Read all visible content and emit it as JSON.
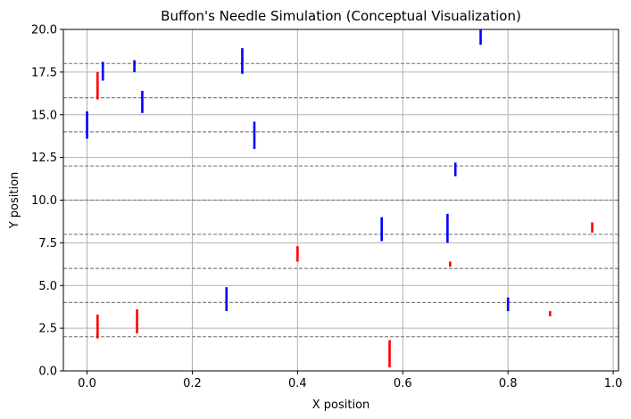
{
  "chart_data": {
    "type": "scatter",
    "title": "Buffon's Needle Simulation (Conceptual Visualization)",
    "xlabel": "X position",
    "ylabel": "Y position",
    "xlim": [
      -0.045,
      1.01
    ],
    "ylim": [
      0,
      20
    ],
    "x_ticks": [
      0.0,
      0.2,
      0.4,
      0.6,
      0.8,
      1.0
    ],
    "x_tick_labels": [
      "0.0",
      "0.2",
      "0.4",
      "0.6",
      "0.8",
      "1.0"
    ],
    "y_ticks": [
      0.0,
      2.5,
      5.0,
      7.5,
      10.0,
      12.5,
      15.0,
      17.5,
      20.0
    ],
    "y_tick_labels": [
      "0.0",
      "2.5",
      "5.0",
      "7.5",
      "10.0",
      "12.5",
      "15.0",
      "17.5",
      "20.0"
    ],
    "grid": true,
    "reference_lines": {
      "style": "dashed",
      "color": "#808080",
      "y": [
        2,
        4,
        6,
        8,
        10,
        12,
        14,
        16,
        18
      ]
    },
    "colors": {
      "crossing": "#ff0000",
      "not_crossing": "#0000ff",
      "grid": "#b0b0b0"
    },
    "needles": [
      {
        "x": 0.0,
        "y1": 13.6,
        "y2": 15.2,
        "crosses": false
      },
      {
        "x": 0.02,
        "y1": 1.9,
        "y2": 3.3,
        "crosses": true
      },
      {
        "x": 0.02,
        "y1": 15.9,
        "y2": 17.5,
        "crosses": true
      },
      {
        "x": 0.03,
        "y1": 17.0,
        "y2": 18.1,
        "crosses": false
      },
      {
        "x": 0.09,
        "y1": 17.5,
        "y2": 18.2,
        "crosses": false
      },
      {
        "x": 0.095,
        "y1": 2.2,
        "y2": 3.6,
        "crosses": true
      },
      {
        "x": 0.105,
        "y1": 15.1,
        "y2": 16.4,
        "crosses": false
      },
      {
        "x": 0.265,
        "y1": 3.5,
        "y2": 4.9,
        "crosses": false
      },
      {
        "x": 0.295,
        "y1": 17.4,
        "y2": 18.9,
        "crosses": false
      },
      {
        "x": 0.318,
        "y1": 13.0,
        "y2": 14.6,
        "crosses": false
      },
      {
        "x": 0.4,
        "y1": 6.4,
        "y2": 7.3,
        "crosses": true
      },
      {
        "x": 0.56,
        "y1": 7.6,
        "y2": 9.0,
        "crosses": false
      },
      {
        "x": 0.575,
        "y1": 0.2,
        "y2": 1.8,
        "crosses": true
      },
      {
        "x": 0.685,
        "y1": 7.5,
        "y2": 9.2,
        "crosses": false
      },
      {
        "x": 0.69,
        "y1": 6.1,
        "y2": 6.4,
        "crosses": true
      },
      {
        "x": 0.7,
        "y1": 11.4,
        "y2": 12.2,
        "crosses": false
      },
      {
        "x": 0.748,
        "y1": 19.1,
        "y2": 20.0,
        "crosses": false
      },
      {
        "x": 0.8,
        "y1": 3.5,
        "y2": 4.3,
        "crosses": false
      },
      {
        "x": 0.88,
        "y1": 3.2,
        "y2": 3.5,
        "crosses": true
      },
      {
        "x": 0.96,
        "y1": 8.1,
        "y2": 8.7,
        "crosses": true
      }
    ]
  }
}
